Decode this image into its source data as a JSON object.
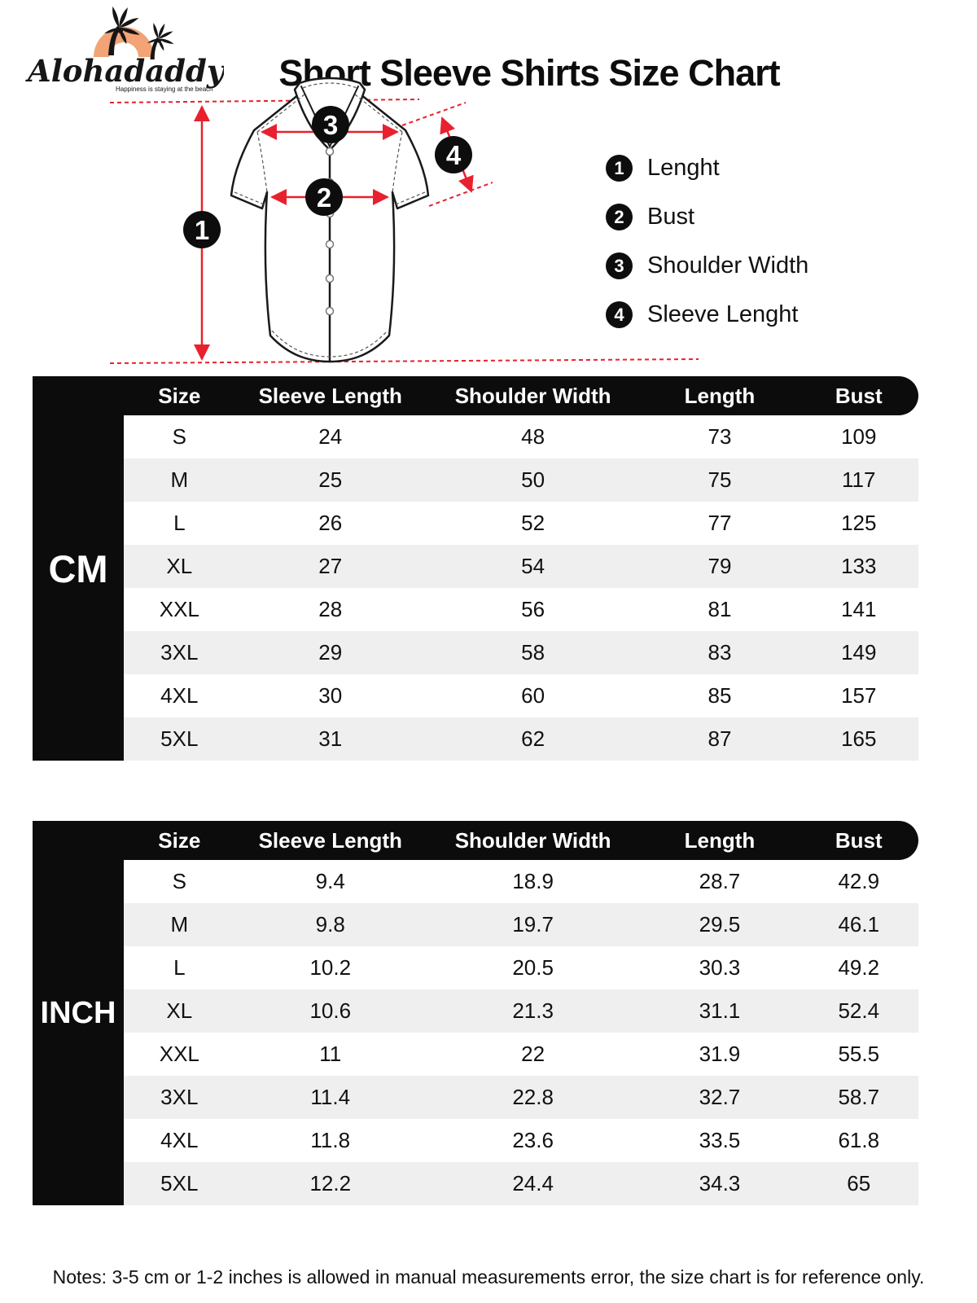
{
  "brand": {
    "name": "Alohadaddy",
    "tagline": "Happiness is staying at the beach"
  },
  "title": "Short Sleeve Shirts Size Chart",
  "diagram": {
    "markers": [
      "1",
      "2",
      "3",
      "4"
    ]
  },
  "legend": [
    {
      "num": "1",
      "label": "Lenght"
    },
    {
      "num": "2",
      "label": "Bust"
    },
    {
      "num": "3",
      "label": "Shoulder Width"
    },
    {
      "num": "4",
      "label": "Sleeve Lenght"
    }
  ],
  "tables": {
    "columns": [
      "Size",
      "Sleeve Length",
      "Shoulder Width",
      "Length",
      "Bust"
    ],
    "cm": {
      "unit_label": "CM",
      "rows": [
        [
          "S",
          "24",
          "48",
          "73",
          "109"
        ],
        [
          "M",
          "25",
          "50",
          "75",
          "117"
        ],
        [
          "L",
          "26",
          "52",
          "77",
          "125"
        ],
        [
          "XL",
          "27",
          "54",
          "79",
          "133"
        ],
        [
          "XXL",
          "28",
          "56",
          "81",
          "141"
        ],
        [
          "3XL",
          "29",
          "58",
          "83",
          "149"
        ],
        [
          "4XL",
          "30",
          "60",
          "85",
          "157"
        ],
        [
          "5XL",
          "31",
          "62",
          "87",
          "165"
        ]
      ]
    },
    "inch": {
      "unit_label": "INCH",
      "rows": [
        [
          "S",
          "9.4",
          "18.9",
          "28.7",
          "42.9"
        ],
        [
          "M",
          "9.8",
          "19.7",
          "29.5",
          "46.1"
        ],
        [
          "L",
          "10.2",
          "20.5",
          "30.3",
          "49.2"
        ],
        [
          "XL",
          "10.6",
          "21.3",
          "31.1",
          "52.4"
        ],
        [
          "XXL",
          "11",
          "22",
          "31.9",
          "55.5"
        ],
        [
          "3XL",
          "11.4",
          "22.8",
          "32.7",
          "58.7"
        ],
        [
          "4XL",
          "11.8",
          "23.6",
          "33.5",
          "61.8"
        ],
        [
          "5XL",
          "12.2",
          "24.4",
          "34.3",
          "65"
        ]
      ]
    }
  },
  "notes": "Notes: 3-5 cm or 1-2 inches is allowed in manual measurements error, the size chart is for reference only.",
  "colors": {
    "accent_red": "#e8212e",
    "logo_orange": "#f2a477",
    "header_black": "#0c0c0c",
    "row_gray": "#efefef"
  }
}
